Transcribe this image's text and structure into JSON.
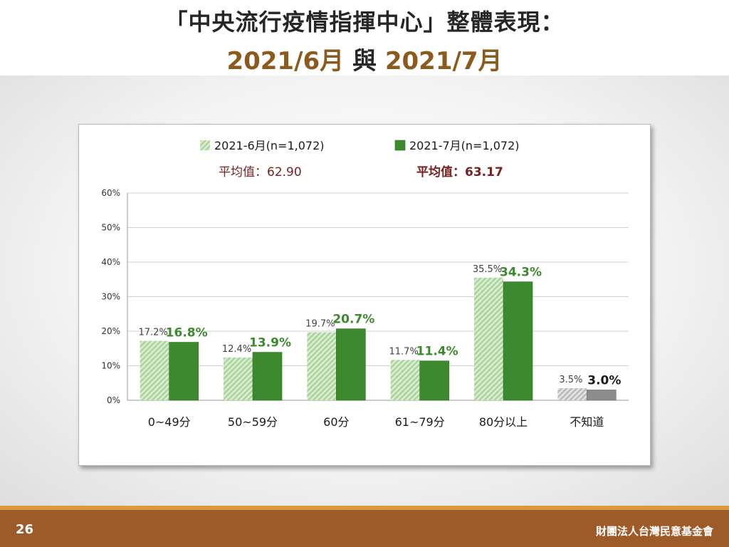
{
  "header": {
    "title_line1": "「中央流行疫情指揮中心」整體表現：",
    "title_part1": "2021/6月",
    "title_connector": " 與 ",
    "title_part2": "2021/7月"
  },
  "footer": {
    "page_number": "26",
    "organization": "財團法人台灣民意基金會"
  },
  "colors": {
    "series_june": "#a9d39a",
    "series_july": "#3d8a2e",
    "unknown_june": "#b8b8b8",
    "unknown_july": "#8c8c8c",
    "avg_label": "#7a2020",
    "july_label": "#3d8a2e"
  },
  "chart_data": {
    "type": "bar",
    "categories": [
      "0~49分",
      "50~59分",
      "60分",
      "61~79分",
      "80分以上",
      "不知道"
    ],
    "series": [
      {
        "name": "2021-6月(n=1,072)",
        "values": [
          17.2,
          12.4,
          19.7,
          11.7,
          35.5,
          3.5
        ],
        "labels": [
          "17.2%",
          "12.4%",
          "19.7%",
          "11.7%",
          "35.5%",
          "3.5%"
        ],
        "average_label": "平均值：62.90"
      },
      {
        "name": "2021-7月(n=1,072)",
        "values": [
          16.8,
          13.9,
          20.7,
          11.4,
          34.3,
          3.0
        ],
        "labels": [
          "16.8%",
          "13.9%",
          "20.7%",
          "11.4%",
          "34.3%",
          "3.0%"
        ],
        "average_label": "平均值：63.17"
      }
    ],
    "yticks": [
      "0%",
      "10%",
      "20%",
      "30%",
      "40%",
      "50%",
      "60%"
    ],
    "ylim": [
      0,
      60
    ],
    "grid": true,
    "legend_position": "top"
  }
}
